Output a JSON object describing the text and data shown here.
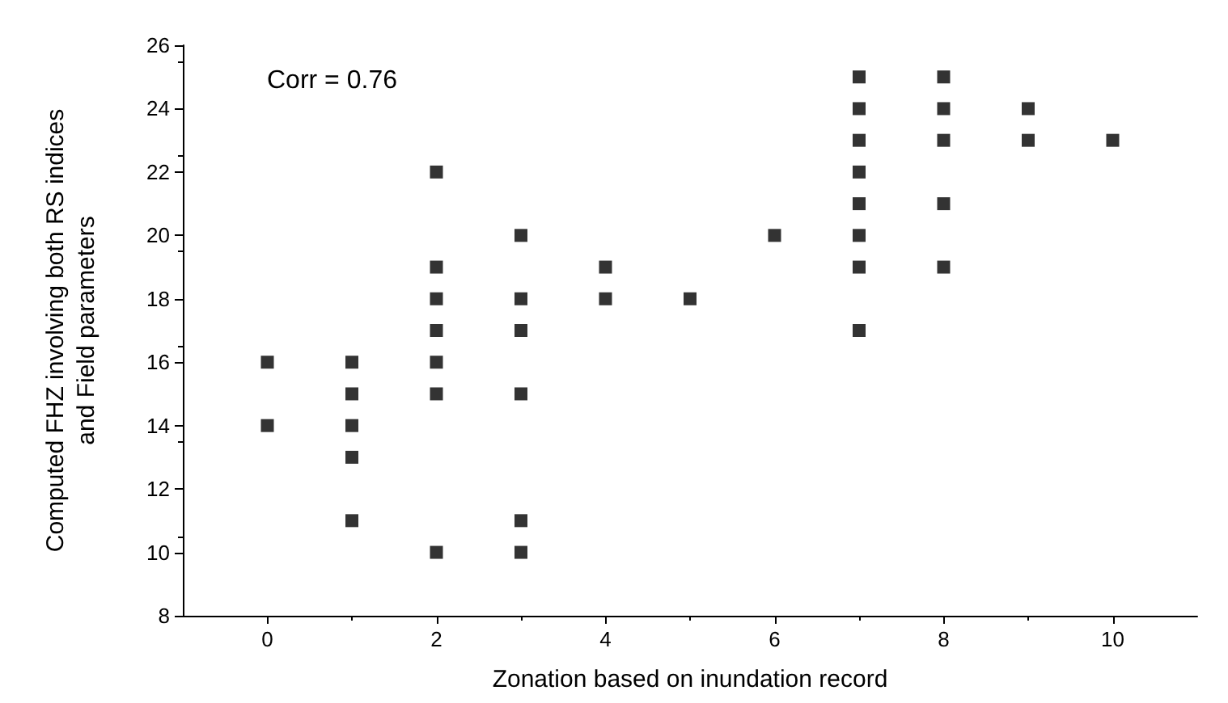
{
  "chart_data": {
    "type": "scatter",
    "xlabel": "Zonation based on inundation record",
    "ylabel": "Computed FHZ involving both RS indices\nand Field parameters",
    "annotations": [
      "Corr = 0.76"
    ],
    "x": [
      0,
      0,
      1,
      1,
      1,
      1,
      1,
      2,
      2,
      2,
      2,
      2,
      2,
      2,
      3,
      3,
      3,
      3,
      3,
      3,
      4,
      4,
      5,
      6,
      7,
      7,
      7,
      7,
      7,
      7,
      7,
      7,
      8,
      8,
      8,
      8,
      8,
      9,
      9,
      10
    ],
    "values": [
      16,
      14,
      16,
      15,
      14,
      13,
      11,
      22,
      19,
      18,
      17,
      16,
      15,
      10,
      20,
      18,
      17,
      15,
      11,
      10,
      19,
      18,
      18,
      20,
      25,
      24,
      23,
      22,
      21,
      20,
      19,
      17,
      25,
      24,
      23,
      21,
      19,
      24,
      23,
      23
    ],
    "color": "#000000",
    "marker": "square",
    "grid": false,
    "xlim": [
      -1,
      11
    ],
    "xticks": [
      0,
      2,
      4,
      6,
      8,
      10
    ],
    "ylim": [
      8,
      26
    ],
    "yticks": [
      8,
      10,
      12,
      14,
      16,
      18,
      20,
      22,
      24,
      26
    ]
  }
}
